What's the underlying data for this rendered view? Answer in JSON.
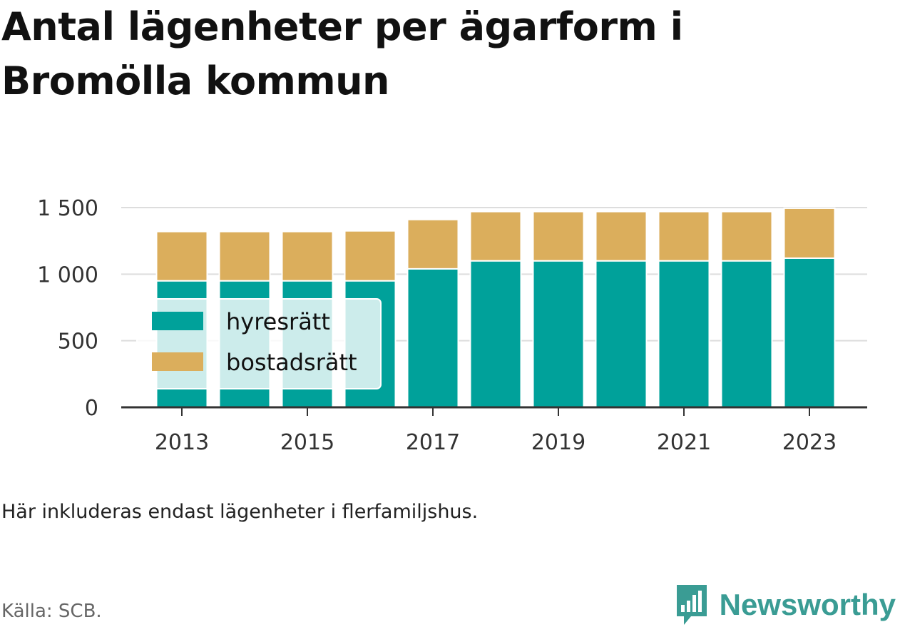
{
  "header": {
    "title": "Antal lägenheter per ägarform i Bromölla kommun"
  },
  "chart_data": {
    "type": "bar",
    "stacked": true,
    "categories": [
      "2013",
      "2014",
      "2015",
      "2016",
      "2017",
      "2018",
      "2019",
      "2020",
      "2021",
      "2022",
      "2023"
    ],
    "x_tick_labels": [
      "2013",
      "2015",
      "2017",
      "2019",
      "2021",
      "2023"
    ],
    "series": [
      {
        "name": "hyresrätt",
        "color": "#00a19a",
        "values": [
          950,
          950,
          950,
          950,
          1040,
          1100,
          1100,
          1100,
          1100,
          1100,
          1120
        ]
      },
      {
        "name": "bostadsrätt",
        "color": "#dbae5c",
        "values": [
          370,
          370,
          370,
          375,
          370,
          370,
          370,
          370,
          370,
          370,
          375
        ]
      }
    ],
    "ylim": [
      0,
      1500
    ],
    "y_ticks": [
      0,
      500,
      1000,
      1500
    ],
    "y_tick_labels": [
      "0",
      "500",
      "1 000",
      "1 500"
    ],
    "grid": true,
    "legend_position": "bottom-left"
  },
  "footer": {
    "note": "Här inkluderas endast lägenheter i flerfamiljshus.",
    "source": "Källa: SCB.",
    "brand": "Newsworthy"
  },
  "colors": {
    "brand": "#3a9c94",
    "grid": "#dddddd",
    "axis": "#333333"
  }
}
